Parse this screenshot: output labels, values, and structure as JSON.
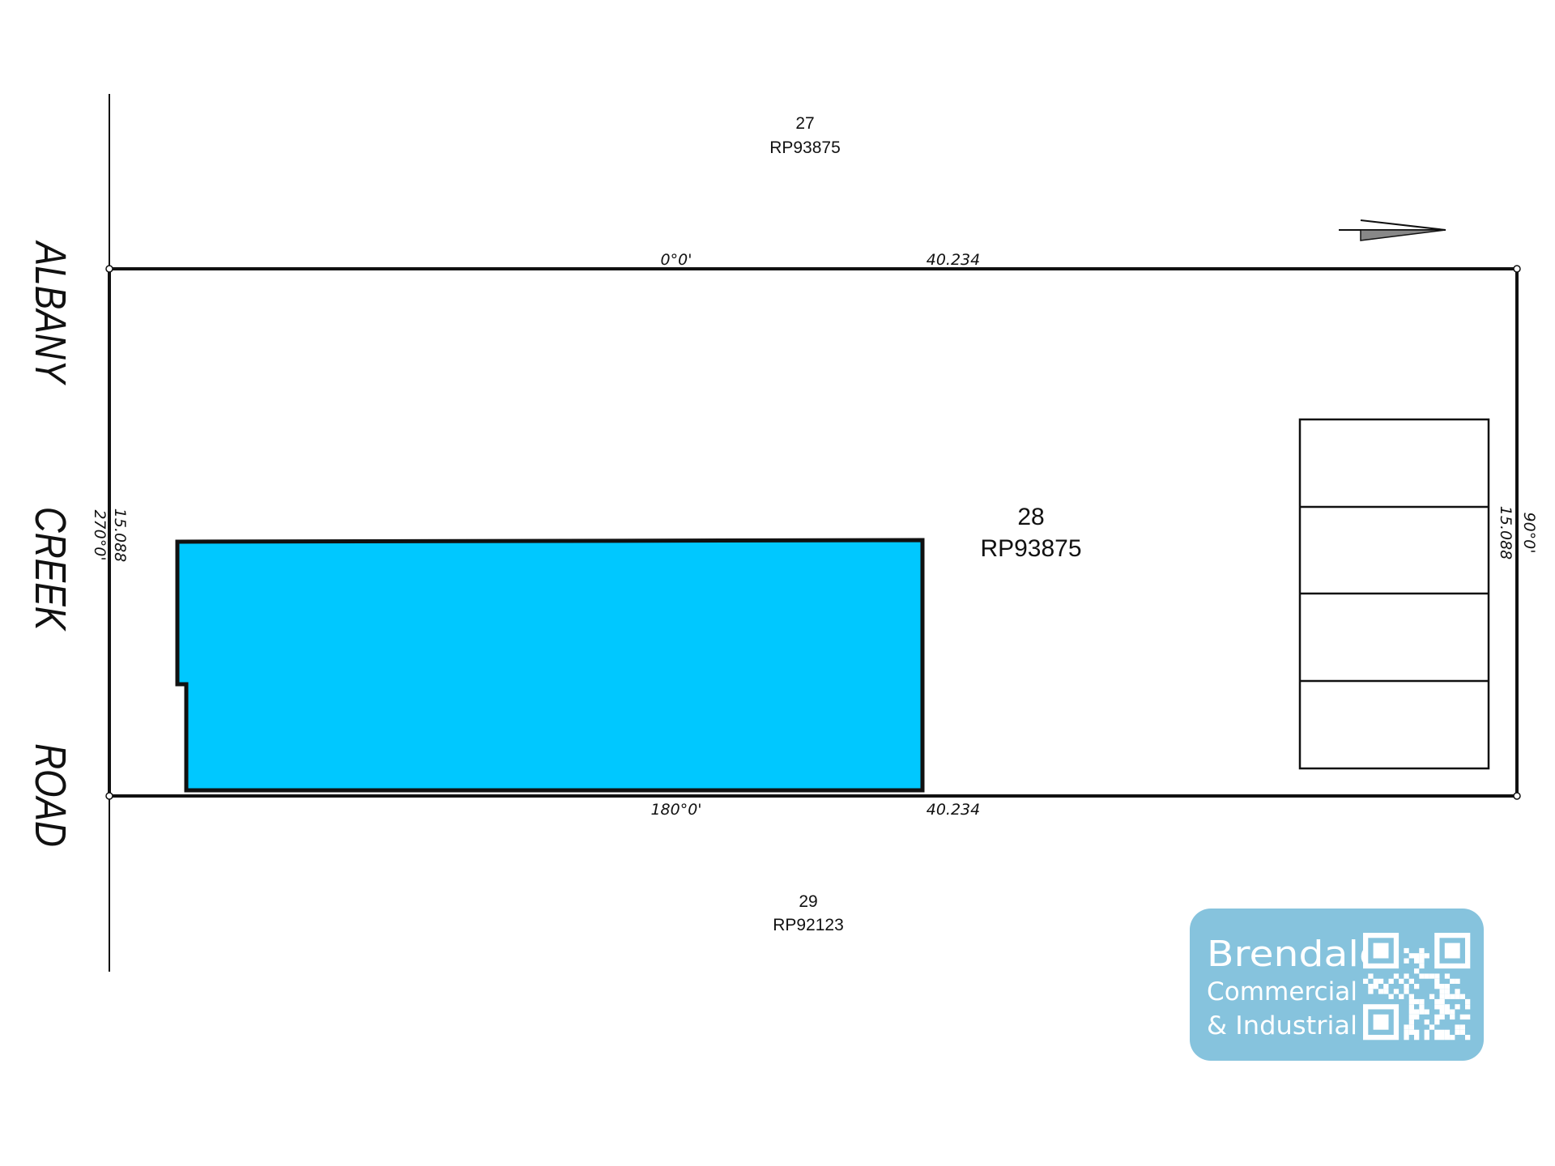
{
  "street": {
    "words": [
      "ALBANY",
      "CREEK",
      "ROAD"
    ]
  },
  "lots": {
    "north": {
      "number": "27",
      "plan": "RP93875"
    },
    "subject": {
      "number": "28",
      "plan": "RP93875"
    },
    "south": {
      "number": "29",
      "plan": "RP92123"
    }
  },
  "boundaries": {
    "top": {
      "bearing": "0°0'",
      "distance": "40.234"
    },
    "bottom": {
      "bearing": "180°0'",
      "distance": "40.234"
    },
    "left": {
      "bearing": "270°0'",
      "distance": "15.088"
    },
    "right": {
      "bearing": "90°0'",
      "distance": "15.088"
    }
  },
  "colors": {
    "building": "#00c8ff",
    "logo_bg": "#86c3dd",
    "line": "#111111"
  },
  "icons": {
    "north_arrow": "north-arrow-icon",
    "qr": "qr-code-icon"
  },
  "logo": {
    "line1": "Brendale",
    "line2": "Commercial",
    "line3": "& Industrial"
  }
}
